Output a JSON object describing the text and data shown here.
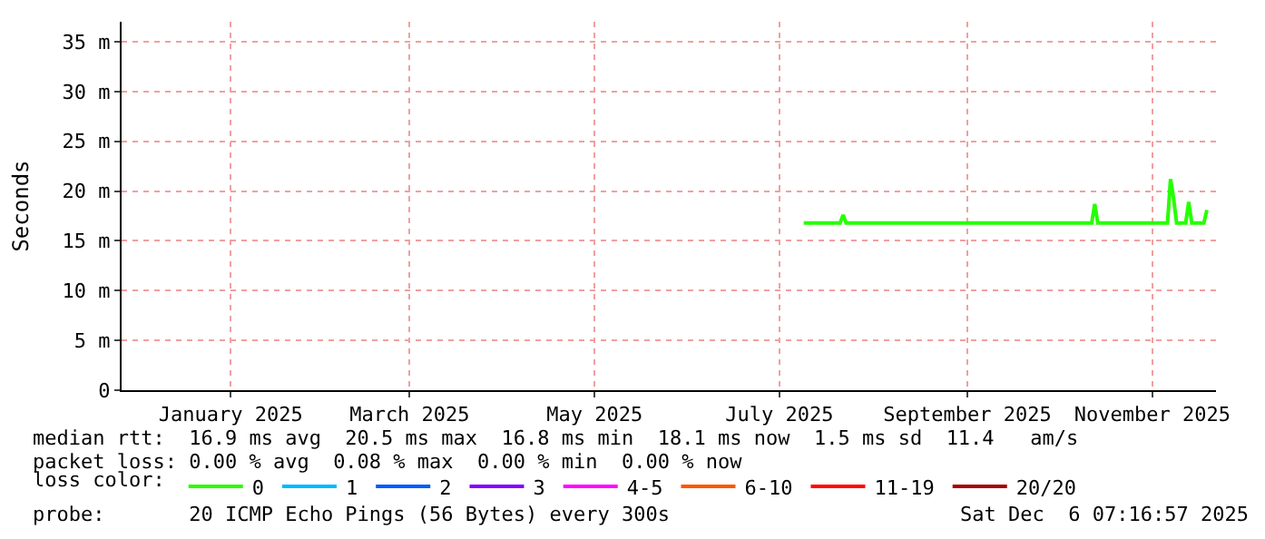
{
  "chart_data": {
    "type": "line",
    "ylabel": "Seconds",
    "x": [
      "2025-07-24",
      "2025-08-05",
      "2025-08-06",
      "2025-08-07",
      "2025-10-27",
      "2025-10-28",
      "2025-10-29",
      "2025-11-21",
      "2025-11-22",
      "2025-11-23",
      "2025-11-24",
      "2025-11-27",
      "2025-11-28",
      "2025-11-29",
      "2025-12-03",
      "2025-12-04"
    ],
    "series": [
      {
        "name": "0",
        "color": "#26ff00",
        "values": [
          16.8,
          16.8,
          17.6,
          16.8,
          16.8,
          18.7,
          16.8,
          16.8,
          21.2,
          19.3,
          16.8,
          16.8,
          18.9,
          16.8,
          16.8,
          18.1
        ]
      },
      {
        "name": "1",
        "color": "#00b8ff",
        "values": [
          null,
          null,
          null,
          null,
          null,
          null,
          null,
          null,
          null,
          null,
          null,
          null,
          null,
          null,
          null,
          null
        ]
      },
      {
        "name": "2",
        "color": "#0059ff",
        "values": [
          null,
          null,
          null,
          null,
          null,
          null,
          null,
          null,
          null,
          null,
          null,
          null,
          null,
          null,
          null,
          null
        ]
      },
      {
        "name": "3",
        "color": "#7e00ff",
        "values": [
          null,
          null,
          null,
          null,
          null,
          null,
          null,
          null,
          null,
          null,
          null,
          null,
          null,
          null,
          null,
          null
        ]
      },
      {
        "name": "4-5",
        "color": "#ff00ff",
        "values": [
          null,
          null,
          null,
          null,
          null,
          null,
          null,
          null,
          null,
          null,
          null,
          null,
          null,
          null,
          null,
          null
        ]
      },
      {
        "name": "6-10",
        "color": "#ff5500",
        "values": [
          null,
          null,
          null,
          null,
          null,
          null,
          null,
          null,
          null,
          null,
          null,
          null,
          null,
          null,
          null,
          null
        ]
      },
      {
        "name": "11-19",
        "color": "#ff0000",
        "values": [
          null,
          null,
          null,
          null,
          null,
          null,
          null,
          null,
          null,
          null,
          null,
          null,
          null,
          null,
          null,
          null
        ]
      },
      {
        "name": "20/20",
        "color": "#a10000",
        "values": [
          null,
          null,
          null,
          null,
          null,
          null,
          null,
          null,
          null,
          null,
          null,
          null,
          null,
          null,
          null,
          null
        ]
      }
    ],
    "legend_title": "loss color:",
    "legend": "bottom",
    "xlim": [
      "2024-12-11",
      "2025-12-07"
    ],
    "xticks": [
      {
        "value": "2025-01-16",
        "label": "January 2025"
      },
      {
        "value": "2025-03-16",
        "label": "March 2025"
      },
      {
        "value": "2025-05-16",
        "label": "May 2025"
      },
      {
        "value": "2025-07-16",
        "label": "July 2025"
      },
      {
        "value": "2025-09-16",
        "label": "September 2025"
      },
      {
        "value": "2025-11-16",
        "label": "November 2025"
      }
    ],
    "ylim": [
      0,
      37
    ],
    "yticks": [
      {
        "value": 0,
        "label": "0"
      },
      {
        "value": 5,
        "label": "5 m"
      },
      {
        "value": 10,
        "label": "10 m"
      },
      {
        "value": 15,
        "label": "15 m"
      },
      {
        "value": 20,
        "label": "20 m"
      },
      {
        "value": 25,
        "label": "25 m"
      },
      {
        "value": 30,
        "label": "30 m"
      },
      {
        "value": 35,
        "label": "35 m"
      }
    ],
    "grid": true,
    "line_style": "solid",
    "marker": "none",
    "annotations": [
      "median rtt:  16.9 ms avg  20.5 ms max  16.8 ms min  18.1 ms now  1.5 ms sd  11.4   am/s",
      "packet loss: 0.00 % avg  0.08 % max  0.00 % min  0.00 % now",
      "probe:       20 ICMP Echo Pings (56 Bytes) every 300s",
      "Sat Dec  6 07:16:57 2025"
    ]
  }
}
